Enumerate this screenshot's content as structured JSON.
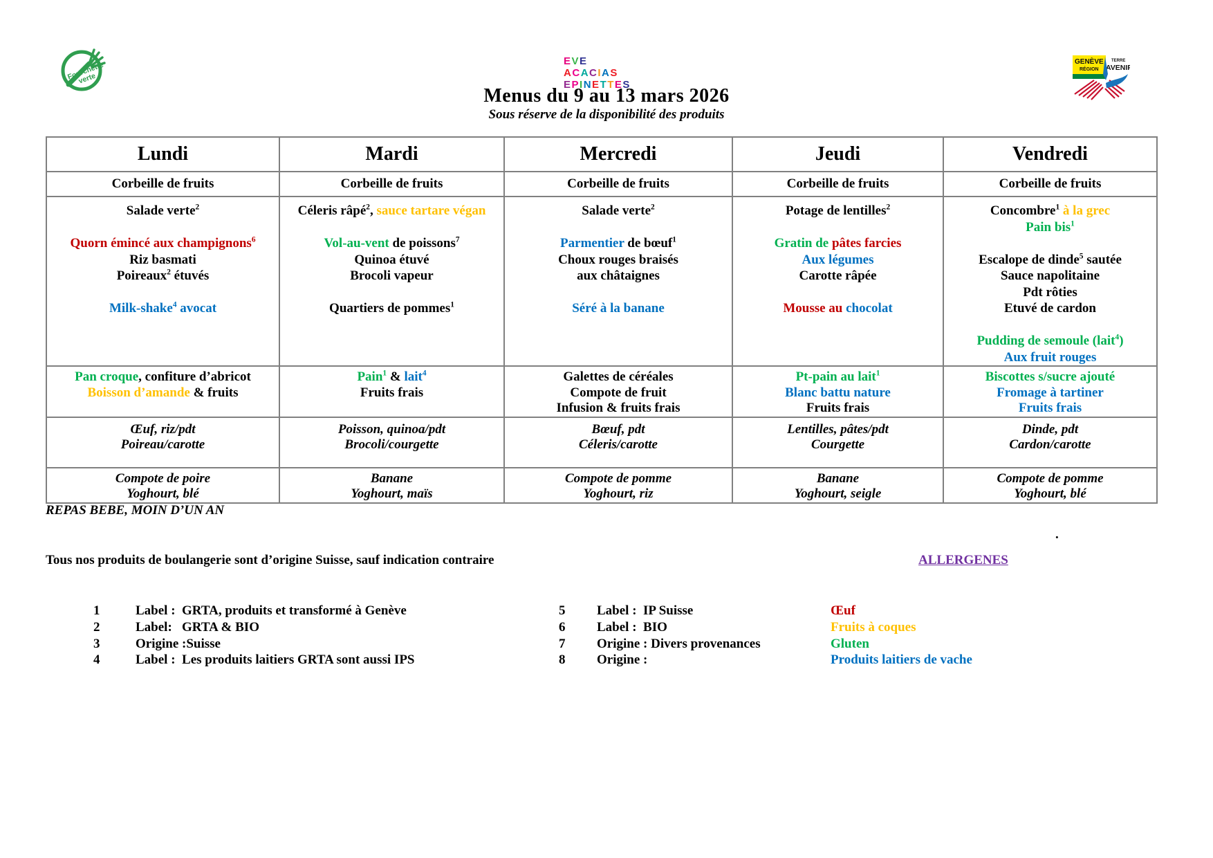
{
  "page": {
    "title": "Menus du 9 au 13 mars 2026",
    "subtitle": "Sous réserve de la disponibilité des produits"
  },
  "logos": {
    "fourchette_verte": {
      "word1": "Fourchette",
      "word2": "verte"
    },
    "eve_lines": [
      [
        {
          "ch": "E",
          "c": "#E6007E"
        },
        {
          "ch": "V",
          "c": "#39B54A"
        },
        {
          "ch": "E",
          "c": "#2E3192"
        }
      ],
      [
        {
          "ch": "A",
          "c": "#ED1C24"
        },
        {
          "ch": "C",
          "c": "#EC008C"
        },
        {
          "ch": "A",
          "c": "#00A99D"
        },
        {
          "ch": "C",
          "c": "#92278F"
        },
        {
          "ch": "I",
          "c": "#F7941D"
        },
        {
          "ch": "A",
          "c": "#0072BC"
        },
        {
          "ch": "S",
          "c": "#ED1C24"
        }
      ],
      [
        {
          "ch": "E",
          "c": "#92278F"
        },
        {
          "ch": "P",
          "c": "#EC008C"
        },
        {
          "ch": "I",
          "c": "#39B54A"
        },
        {
          "ch": "N",
          "c": "#0072BC"
        },
        {
          "ch": "E",
          "c": "#ED1C24"
        },
        {
          "ch": "T",
          "c": "#00A99D"
        },
        {
          "ch": "T",
          "c": "#F7941D"
        },
        {
          "ch": "E",
          "c": "#E6007E"
        },
        {
          "ch": "S",
          "c": "#2E3192"
        }
      ]
    ],
    "grta": {
      "l1": "GENÈVE",
      "l2": "RÉGION",
      "l3": "TERRE",
      "l4": "AVENIR"
    }
  },
  "colors": {
    "red": "#C00000",
    "green": "#00B050",
    "blue": "#0070C0",
    "yellow": "#FFC000",
    "purple": "#7030A0",
    "table_border": "#808080"
  },
  "table": {
    "columns": [
      {
        "day": "Lundi",
        "fruits": "Corbeille de fruits",
        "main": [
          [
            {
              "t": "Salade verte"
            },
            {
              "t": "2",
              "sup": true
            }
          ],
          [],
          [
            {
              "t": "Quorn émincé aux champignons",
              "c": "#C00000"
            },
            {
              "t": "6",
              "c": "#C00000",
              "sup": true
            }
          ],
          [
            {
              "t": "Riz basmati"
            }
          ],
          [
            {
              "t": "Poireaux"
            },
            {
              "t": "2",
              "sup": true
            },
            {
              "t": " étuvés"
            }
          ],
          [],
          [
            {
              "t": "Milk-shake",
              "c": "#0070C0"
            },
            {
              "t": "4",
              "c": "#0070C0",
              "sup": true
            },
            {
              "t": " avocat",
              "c": "#0070C0"
            }
          ]
        ],
        "gouter": [
          [
            {
              "t": "Pan croque",
              "c": "#00B050"
            },
            {
              "t": ", confiture d’abricot"
            }
          ],
          [
            {
              "t": "Boisson d’amande",
              "c": "#FFC000"
            },
            {
              "t": " & fruits"
            }
          ]
        ],
        "baby_meal": [
          [
            {
              "t": "Œuf, riz/pdt"
            }
          ],
          [
            {
              "t": "Poireau/carotte"
            }
          ]
        ],
        "baby_dessert": [
          [
            {
              "t": "Compote de poire"
            }
          ],
          [
            {
              "t": "Yoghourt, blé"
            }
          ]
        ]
      },
      {
        "day": "Mardi",
        "fruits": "Corbeille de fruits",
        "main": [
          [
            {
              "t": "Céleris râpé"
            },
            {
              "t": "2",
              "sup": true
            },
            {
              "t": ", "
            },
            {
              "t": "sauce tartare végan",
              "c": "#FFC000"
            }
          ],
          [],
          [
            {
              "t": "Vol-au-vent",
              "c": "#00B050"
            },
            {
              "t": " de poissons"
            },
            {
              "t": "7",
              "sup": true
            }
          ],
          [
            {
              "t": "Quinoa étuvé"
            }
          ],
          [
            {
              "t": "Brocoli vapeur"
            }
          ],
          [],
          [
            {
              "t": "Quartiers de pommes"
            },
            {
              "t": "1",
              "sup": true
            }
          ]
        ],
        "gouter": [
          [
            {
              "t": "Pain",
              "c": "#00B050"
            },
            {
              "t": "1",
              "c": "#00B050",
              "sup": true
            },
            {
              "t": " & "
            },
            {
              "t": "lait",
              "c": "#0070C0"
            },
            {
              "t": "4",
              "c": "#0070C0",
              "sup": true
            }
          ],
          [
            {
              "t": "Fruits frais"
            }
          ]
        ],
        "baby_meal": [
          [
            {
              "t": "Poisson, quinoa/pdt"
            }
          ],
          [
            {
              "t": "Brocoli/courgette"
            }
          ]
        ],
        "baby_dessert": [
          [
            {
              "t": "Banane"
            }
          ],
          [
            {
              "t": "Yoghourt, maïs"
            }
          ]
        ]
      },
      {
        "day": "Mercredi",
        "fruits": "Corbeille de fruits",
        "main": [
          [
            {
              "t": "Salade verte"
            },
            {
              "t": "2",
              "sup": true
            }
          ],
          [],
          [
            {
              "t": "Parmentier",
              "c": "#0070C0"
            },
            {
              "t": " de bœuf"
            },
            {
              "t": "1",
              "sup": true
            }
          ],
          [
            {
              "t": "Choux rouges braisés"
            }
          ],
          [
            {
              "t": "aux châtaignes"
            }
          ],
          [],
          [
            {
              "t": "Séré à la banane",
              "c": "#0070C0"
            }
          ]
        ],
        "gouter": [
          [
            {
              "t": "Galettes de céréales"
            }
          ],
          [
            {
              "t": "Compote de fruit"
            }
          ],
          [
            {
              "t": "Infusion & fruits frais"
            }
          ]
        ],
        "baby_meal": [
          [
            {
              "t": "Bœuf, pdt"
            }
          ],
          [
            {
              "t": "Céleris/carotte"
            }
          ]
        ],
        "baby_dessert": [
          [
            {
              "t": "Compote de pomme"
            }
          ],
          [
            {
              "t": "Yoghourt, riz"
            }
          ]
        ]
      },
      {
        "day": "Jeudi",
        "fruits": "Corbeille de fruits",
        "main": [
          [
            {
              "t": "Potage de lentilles"
            },
            {
              "t": "2",
              "sup": true
            }
          ],
          [],
          [
            {
              "t": "Gratin de ",
              "c": "#00B050"
            },
            {
              "t": "pâtes farcies",
              "c": "#C00000"
            }
          ],
          [
            {
              "t": "Aux légumes",
              "c": "#0070C0"
            }
          ],
          [
            {
              "t": "Carotte râpée"
            }
          ],
          [],
          [
            {
              "t": "Mousse au ",
              "c": "#C00000"
            },
            {
              "t": "chocolat",
              "c": "#0070C0"
            }
          ]
        ],
        "gouter": [
          [
            {
              "t": "Pt-pain au lait",
              "c": "#00B050"
            },
            {
              "t": "1",
              "c": "#00B050",
              "sup": true
            }
          ],
          [
            {
              "t": "Blanc battu nature",
              "c": "#0070C0"
            }
          ],
          [
            {
              "t": "Fruits frais"
            }
          ]
        ],
        "baby_meal": [
          [
            {
              "t": "Lentilles, pâtes/pdt"
            }
          ],
          [
            {
              "t": "Courgette"
            }
          ]
        ],
        "baby_dessert": [
          [
            {
              "t": "Banane"
            }
          ],
          [
            {
              "t": "Yoghourt, seigle"
            }
          ]
        ]
      },
      {
        "day": "Vendredi",
        "fruits": "Corbeille de fruits",
        "main": [
          [
            {
              "t": "Concombre"
            },
            {
              "t": "1",
              "sup": true
            },
            {
              "t": " à la grec",
              "c": "#FFC000"
            }
          ],
          [
            {
              "t": "Pain bis",
              "c": "#00B050"
            },
            {
              "t": "1",
              "c": "#00B050",
              "sup": true
            }
          ],
          [],
          [
            {
              "t": "Escalope de dinde"
            },
            {
              "t": "5",
              "sup": true
            },
            {
              "t": " sautée"
            }
          ],
          [
            {
              "t": "Sauce napolitaine"
            }
          ],
          [
            {
              "t": "Pdt rôties"
            }
          ],
          [
            {
              "t": "Etuvé de cardon"
            }
          ],
          [],
          [
            {
              "t": "Pudding de semoule (lait",
              "c": "#00B050"
            },
            {
              "t": "4",
              "c": "#00B050",
              "sup": true
            },
            {
              "t": ")",
              "c": "#00B050"
            }
          ],
          [
            {
              "t": "Aux fruit rouges",
              "c": "#0070C0"
            }
          ]
        ],
        "gouter": [
          [
            {
              "t": "Biscottes s/sucre ajouté",
              "c": "#00B050"
            }
          ],
          [
            {
              "t": "Fromage à tartiner",
              "c": "#0070C0"
            }
          ],
          [
            {
              "t": "Fruits frais",
              "c": "#0070C0"
            }
          ]
        ],
        "baby_meal": [
          [
            {
              "t": "Dinde, pdt"
            }
          ],
          [
            {
              "t": "Cardon/carotte"
            }
          ]
        ],
        "baby_dessert": [
          [
            {
              "t": "Compote de pomme"
            }
          ],
          [
            {
              "t": "Yoghourt, blé"
            }
          ]
        ]
      }
    ]
  },
  "footer": {
    "repas_bebe": "REPAS BEBE, MOIN D’UN AN",
    "dot": ".",
    "boulangerie_note": "Tous nos produits de boulangerie sont d’origine Suisse, sauf indication contraire",
    "allergenes_title": "ALLERGENES",
    "legend_left": [
      {
        "num": "1",
        "text": "Label :  GRTA, produits et transformé à Genève"
      },
      {
        "num": "2",
        "text": "Label:   GRTA & BIO"
      },
      {
        "num": "3",
        "text": "Origine :Suisse"
      },
      {
        "num": "4",
        "text": "Label :  Les produits laitiers GRTA sont aussi IPS"
      }
    ],
    "legend_mid": [
      {
        "num": "5",
        "text": "Label :  IP Suisse"
      },
      {
        "num": "6",
        "text": "Label :  BIO"
      },
      {
        "num": "7",
        "text": "Origine : Divers provenances"
      },
      {
        "num": "8",
        "text": "Origine :"
      }
    ],
    "allergens": [
      {
        "t": "Œuf",
        "c": "#C00000"
      },
      {
        "t": "Fruits à coques",
        "c": "#FFC000"
      },
      {
        "t": "Gluten",
        "c": "#00B050"
      },
      {
        "t": "Produits laitiers de vache",
        "c": "#0070C0"
      }
    ]
  }
}
